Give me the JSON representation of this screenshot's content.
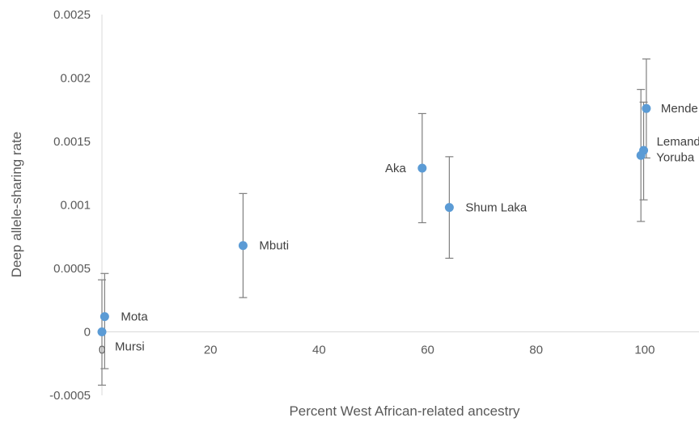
{
  "chart_data": {
    "type": "scatter",
    "title": "",
    "xlabel": "Percent West African-related ancestry",
    "ylabel": "Deep allele-sharing rate",
    "xlim": [
      0,
      110
    ],
    "ylim": [
      -0.0005,
      0.0025
    ],
    "xticks": [
      0,
      20,
      40,
      60,
      80,
      100
    ],
    "yticks": [
      -0.0005,
      0,
      0.0005,
      0.001,
      0.0015,
      0.002,
      0.0025
    ],
    "xtick_labels": [
      "0",
      "20",
      "40",
      "60",
      "80",
      "100"
    ],
    "ytick_labels": [
      "-0.0005",
      "0",
      "0.0005",
      "0.001",
      "0.0015",
      "0.002",
      "0.0025"
    ],
    "grid": false,
    "legend": "none",
    "marker_color": "#5B9BD5",
    "errorbar_color": "#7f7f7f",
    "points": [
      {
        "label": "Mota",
        "x": 0.5,
        "y": 0.00012,
        "err_low": -0.00029,
        "err_high": 0.00046
      },
      {
        "label": "Mursi",
        "x": 0.0,
        "y": 0.0,
        "err_low": -0.00042,
        "err_high": 0.00041
      },
      {
        "label": "Mbuti",
        "x": 26,
        "y": 0.00068,
        "err_low": 0.00027,
        "err_high": 0.00109
      },
      {
        "label": "Aka",
        "x": 59,
        "y": 0.00129,
        "err_low": 0.00086,
        "err_high": 0.00172
      },
      {
        "label": "Shum Laka",
        "x": 64,
        "y": 0.00098,
        "err_low": 0.00058,
        "err_high": 0.00138
      },
      {
        "label": "Mende",
        "x": 100.3,
        "y": 0.00176,
        "err_low": 0.00137,
        "err_high": 0.00215
      },
      {
        "label": "Lemande",
        "x": 99.8,
        "y": 0.00143,
        "err_low": 0.00104,
        "err_high": 0.00181
      },
      {
        "label": "Yoruba",
        "x": 99.3,
        "y": 0.00139,
        "err_low": 0.00087,
        "err_high": 0.00191
      }
    ]
  }
}
